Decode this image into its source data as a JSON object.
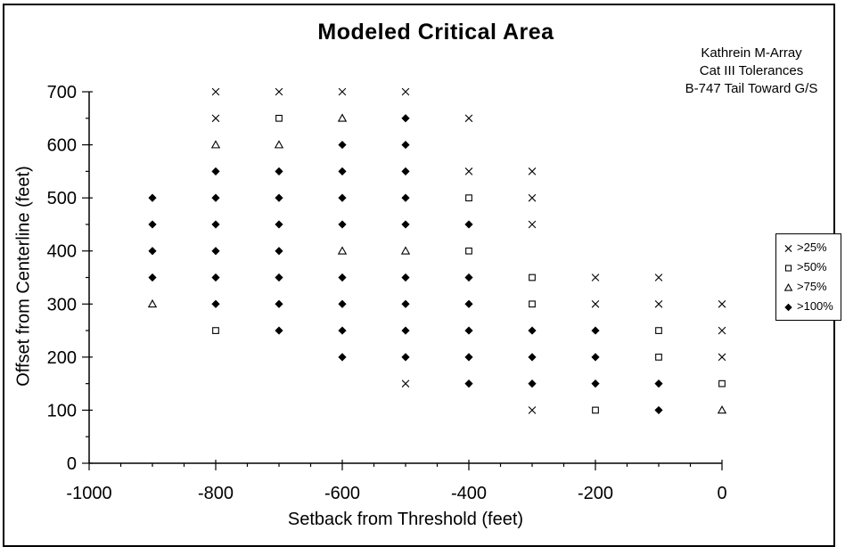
{
  "colors": {
    "foreground": "#000000",
    "background": "#FFFFFF"
  },
  "chart_data": {
    "type": "scatter",
    "title": "Modeled Critical Area",
    "xlabel": "Setback from Threshold (feet)",
    "ylabel": "Offset from Centerline (feet)",
    "annotation_lines": [
      "Kathrein M-Array",
      "Cat III Tolerances",
      "B-747 Tail Toward G/S"
    ],
    "xlim": [
      -1000,
      0
    ],
    "ylim": [
      0,
      700
    ],
    "x_major_ticks": [
      -1000,
      -800,
      -600,
      -400,
      -200,
      0
    ],
    "x_minor_tick_step": 50,
    "y_major_ticks": [
      0,
      100,
      200,
      300,
      400,
      500,
      600,
      700
    ],
    "y_minor_tick_step": 50,
    "grid": "off",
    "legend_position": "right",
    "legend": [
      {
        "label": ">25%",
        "marker": "x"
      },
      {
        "label": ">50%",
        "marker": "square"
      },
      {
        "label": ">75%",
        "marker": "triangle"
      },
      {
        "label": ">100%",
        "marker": "diamond"
      }
    ],
    "series": [
      {
        "name": ">25%",
        "marker": "x",
        "points": [
          [
            -800,
            700
          ],
          [
            -700,
            700
          ],
          [
            -600,
            700
          ],
          [
            -500,
            700
          ],
          [
            -800,
            650
          ],
          [
            -400,
            650
          ],
          [
            -400,
            550
          ],
          [
            -300,
            550
          ],
          [
            -300,
            500
          ],
          [
            -300,
            450
          ],
          [
            -200,
            350
          ],
          [
            -100,
            350
          ],
          [
            -200,
            300
          ],
          [
            -100,
            300
          ],
          [
            0,
            300
          ],
          [
            0,
            250
          ],
          [
            0,
            200
          ],
          [
            -500,
            150
          ],
          [
            -300,
            100
          ]
        ]
      },
      {
        "name": ">50%",
        "marker": "square",
        "points": [
          [
            -700,
            650
          ],
          [
            -400,
            500
          ],
          [
            -400,
            400
          ],
          [
            -300,
            350
          ],
          [
            -300,
            300
          ],
          [
            -800,
            250
          ],
          [
            -100,
            250
          ],
          [
            -100,
            200
          ],
          [
            0,
            150
          ],
          [
            -200,
            100
          ]
        ]
      },
      {
        "name": ">75%",
        "marker": "triangle",
        "points": [
          [
            -600,
            650
          ],
          [
            -800,
            600
          ],
          [
            -700,
            600
          ],
          [
            -600,
            400
          ],
          [
            -500,
            400
          ],
          [
            -900,
            300
          ],
          [
            0,
            100
          ]
        ]
      },
      {
        "name": ">100%",
        "marker": "diamond",
        "points": [
          [
            -500,
            650
          ],
          [
            -600,
            600
          ],
          [
            -500,
            600
          ],
          [
            -800,
            550
          ],
          [
            -700,
            550
          ],
          [
            -600,
            550
          ],
          [
            -500,
            550
          ],
          [
            -900,
            500
          ],
          [
            -800,
            500
          ],
          [
            -700,
            500
          ],
          [
            -600,
            500
          ],
          [
            -500,
            500
          ],
          [
            -900,
            450
          ],
          [
            -800,
            450
          ],
          [
            -700,
            450
          ],
          [
            -600,
            450
          ],
          [
            -500,
            450
          ],
          [
            -400,
            450
          ],
          [
            -900,
            400
          ],
          [
            -800,
            400
          ],
          [
            -700,
            400
          ],
          [
            -900,
            350
          ],
          [
            -800,
            350
          ],
          [
            -700,
            350
          ],
          [
            -600,
            350
          ],
          [
            -500,
            350
          ],
          [
            -400,
            350
          ],
          [
            -800,
            300
          ],
          [
            -700,
            300
          ],
          [
            -600,
            300
          ],
          [
            -500,
            300
          ],
          [
            -400,
            300
          ],
          [
            -700,
            250
          ],
          [
            -600,
            250
          ],
          [
            -500,
            250
          ],
          [
            -400,
            250
          ],
          [
            -300,
            250
          ],
          [
            -200,
            250
          ],
          [
            -600,
            200
          ],
          [
            -500,
            200
          ],
          [
            -400,
            200
          ],
          [
            -300,
            200
          ],
          [
            -200,
            200
          ],
          [
            -400,
            150
          ],
          [
            -300,
            150
          ],
          [
            -200,
            150
          ],
          [
            -100,
            150
          ],
          [
            -100,
            100
          ]
        ]
      }
    ]
  }
}
